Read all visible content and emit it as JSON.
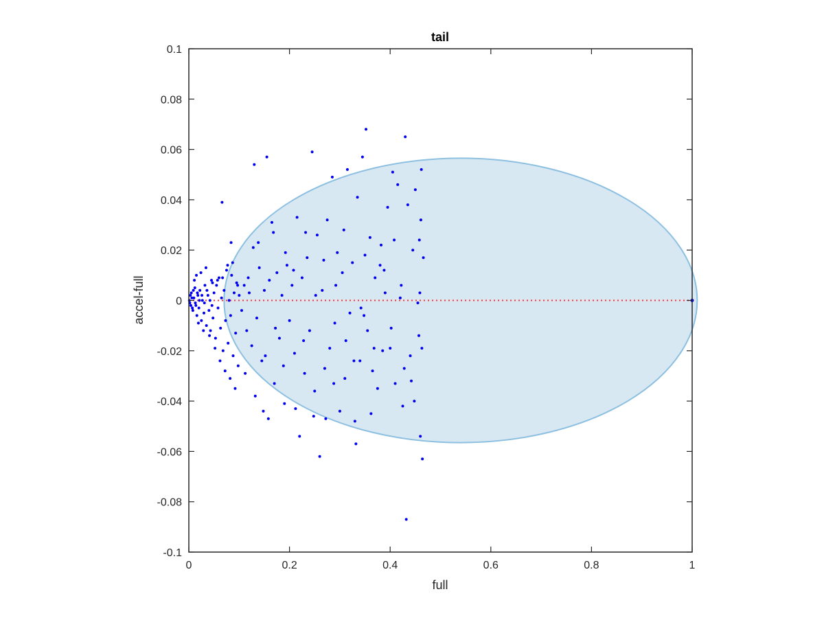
{
  "chart_data": {
    "type": "scatter",
    "title": "tail",
    "xlabel": "full",
    "ylabel": "accel-full",
    "xlim": [
      0,
      1
    ],
    "ylim": [
      -0.1,
      0.1
    ],
    "xticks": [
      0,
      0.2,
      0.4,
      0.6,
      0.8,
      1
    ],
    "xtick_labels": [
      "0",
      "0.2",
      "0.4",
      "0.6",
      "0.8",
      "1"
    ],
    "yticks": [
      -0.1,
      -0.08,
      -0.06,
      -0.04,
      -0.02,
      0,
      0.02,
      0.04,
      0.06,
      0.08,
      0.1
    ],
    "ytick_labels": [
      "-0.1",
      "-0.08",
      "-0.06",
      "-0.04",
      "-0.02",
      "0",
      "0.02",
      "0.04",
      "0.06",
      "0.08",
      "0.1"
    ],
    "grid": false,
    "box": true,
    "colors": {
      "points": "#0000ee",
      "reference_line": "#ff3333",
      "ellipse_fill": "#d8e8f3",
      "ellipse_edge": "#8cbfe0",
      "axes": "#262626"
    },
    "ellipse": {
      "cx": 0.54,
      "cy": 0.0,
      "rx": 0.47,
      "ry": 0.0565
    },
    "reference_line": {
      "y": 0,
      "x_start": 0,
      "x_end": 1,
      "style": "dotted"
    },
    "series": [
      {
        "values": [
          [
            0.005,
            0.003
          ],
          [
            0.008,
            -0.004
          ],
          [
            0.01,
            0.001
          ],
          [
            0.012,
            0.005
          ],
          [
            0.014,
            -0.002
          ],
          [
            0.016,
            -0.006
          ],
          [
            0.018,
            0.002
          ],
          [
            0.02,
            -0.003
          ],
          [
            0.022,
            0.004
          ],
          [
            0.025,
            -0.008
          ],
          [
            0.027,
            0.0
          ],
          [
            0.03,
            -0.005
          ],
          [
            0.032,
            0.006
          ],
          [
            0.035,
            -0.01
          ],
          [
            0.038,
            0.002
          ],
          [
            0.04,
            -0.004
          ],
          [
            0.043,
            -0.012
          ],
          [
            0.045,
            0.008
          ],
          [
            0.048,
            -0.007
          ],
          [
            0.05,
            0.003
          ],
          [
            0.053,
            -0.015
          ],
          [
            0.055,
            0.006
          ],
          [
            0.058,
            -0.003
          ],
          [
            0.06,
            0.009
          ],
          [
            0.063,
            -0.011
          ],
          [
            0.065,
            0.001
          ],
          [
            0.068,
            -0.02
          ],
          [
            0.07,
            0.004
          ],
          [
            0.073,
            -0.008
          ],
          [
            0.075,
            0.012
          ],
          [
            0.078,
            -0.017
          ],
          [
            0.08,
            0.0
          ],
          [
            0.083,
            -0.006
          ],
          [
            0.085,
            0.01
          ],
          [
            0.088,
            -0.022
          ],
          [
            0.09,
            0.003
          ],
          [
            0.093,
            -0.013
          ],
          [
            0.095,
            0.007
          ],
          [
            0.098,
            -0.026
          ],
          [
            0.1,
            0.002
          ],
          [
            0.011,
            0.008
          ],
          [
            0.015,
            0.01
          ],
          [
            0.019,
            -0.009
          ],
          [
            0.024,
            0.011
          ],
          [
            0.029,
            -0.012
          ],
          [
            0.034,
            0.013
          ],
          [
            0.041,
            -0.014
          ],
          [
            0.047,
            0.007
          ],
          [
            0.052,
            -0.019
          ],
          [
            0.057,
            0.008
          ],
          [
            0.062,
            -0.024
          ],
          [
            0.067,
            0.009
          ],
          [
            0.072,
            -0.028
          ],
          [
            0.077,
            0.014
          ],
          [
            0.082,
            -0.031
          ],
          [
            0.087,
            0.015
          ],
          [
            0.092,
            -0.035
          ],
          [
            0.097,
            0.006
          ],
          [
            0.084,
            0.023
          ],
          [
            0.066,
            0.039
          ],
          [
            0.105,
            -0.004
          ],
          [
            0.11,
            0.006
          ],
          [
            0.115,
            -0.012
          ],
          [
            0.12,
            0.003
          ],
          [
            0.125,
            -0.018
          ],
          [
            0.128,
            0.021
          ],
          [
            0.13,
            0.054
          ],
          [
            0.135,
            -0.007
          ],
          [
            0.14,
            0.013
          ],
          [
            0.145,
            -0.024
          ],
          [
            0.15,
            0.004
          ],
          [
            0.155,
            0.057
          ],
          [
            0.158,
            -0.047
          ],
          [
            0.16,
            0.008
          ],
          [
            0.165,
            0.031
          ],
          [
            0.17,
            -0.033
          ],
          [
            0.175,
            0.011
          ],
          [
            0.18,
            -0.015
          ],
          [
            0.185,
            0.002
          ],
          [
            0.19,
            -0.041
          ],
          [
            0.195,
            0.014
          ],
          [
            0.2,
            -0.008
          ],
          [
            0.205,
            0.006
          ],
          [
            0.21,
            -0.021
          ],
          [
            0.215,
            0.033
          ],
          [
            0.22,
            -0.054
          ],
          [
            0.225,
            0.009
          ],
          [
            0.23,
            -0.029
          ],
          [
            0.235,
            0.017
          ],
          [
            0.24,
            -0.012
          ],
          [
            0.245,
            0.059
          ],
          [
            0.25,
            -0.036
          ],
          [
            0.255,
            0.026
          ],
          [
            0.26,
            -0.062
          ],
          [
            0.265,
            0.004
          ],
          [
            0.27,
            -0.027
          ],
          [
            0.275,
            0.032
          ],
          [
            0.28,
            -0.019
          ],
          [
            0.285,
            0.049
          ],
          [
            0.29,
            -0.009
          ],
          [
            0.295,
            0.019
          ],
          [
            0.3,
            -0.044
          ],
          [
            0.305,
            0.011
          ],
          [
            0.31,
            -0.031
          ],
          [
            0.315,
            0.052
          ],
          [
            0.32,
            -0.005
          ],
          [
            0.325,
            0.015
          ],
          [
            0.33,
            -0.048
          ],
          [
            0.335,
            0.041
          ],
          [
            0.34,
            -0.024
          ],
          [
            0.345,
            0.057
          ],
          [
            0.35,
            0.018
          ],
          [
            0.352,
            0.068
          ],
          [
            0.355,
            -0.012
          ],
          [
            0.36,
            0.025
          ],
          [
            0.365,
            -0.028
          ],
          [
            0.37,
            0.009
          ],
          [
            0.375,
            -0.035
          ],
          [
            0.38,
            0.014
          ],
          [
            0.385,
            -0.02
          ],
          [
            0.39,
            0.003
          ],
          [
            0.395,
            0.037
          ],
          [
            0.4,
            -0.019
          ],
          [
            0.405,
            0.051
          ],
          [
            0.41,
            -0.033
          ],
          [
            0.415,
            0.046
          ],
          [
            0.42,
            0.001
          ],
          [
            0.425,
            -0.042
          ],
          [
            0.43,
            0.065
          ],
          [
            0.432,
            -0.087
          ],
          [
            0.435,
            0.038
          ],
          [
            0.44,
            -0.022
          ],
          [
            0.445,
            0.02
          ],
          [
            0.448,
            -0.04
          ],
          [
            0.45,
            0.044
          ],
          [
            0.455,
            -0.001
          ],
          [
            0.458,
            0.024
          ],
          [
            0.46,
            -0.054
          ],
          [
            0.462,
            0.052
          ],
          [
            0.464,
            -0.063
          ],
          [
            0.466,
            0.017
          ],
          [
            0.463,
            -0.019
          ],
          [
            0.461,
            0.032
          ],
          [
            0.459,
            0.003
          ],
          [
            0.457,
            -0.014
          ],
          [
            0.112,
            -0.029
          ],
          [
            0.132,
            -0.038
          ],
          [
            0.152,
            -0.022
          ],
          [
            0.172,
            -0.011
          ],
          [
            0.192,
            0.019
          ],
          [
            0.212,
            -0.043
          ],
          [
            0.232,
            0.027
          ],
          [
            0.252,
            0.002
          ],
          [
            0.272,
            -0.047
          ],
          [
            0.292,
            0.006
          ],
          [
            0.312,
            -0.016
          ],
          [
            0.332,
            -0.057
          ],
          [
            0.342,
            -0.003
          ],
          [
            0.362,
            -0.045
          ],
          [
            0.382,
            0.022
          ],
          [
            0.402,
            -0.011
          ],
          [
            0.422,
            0.006
          ],
          [
            0.442,
            -0.032
          ],
          [
            0.118,
            0.009
          ],
          [
            0.138,
            0.023
          ],
          [
            0.148,
            -0.044
          ],
          [
            0.168,
            0.027
          ],
          [
            0.188,
            -0.026
          ],
          [
            0.208,
            0.012
          ],
          [
            0.228,
            -0.016
          ],
          [
            0.248,
            -0.046
          ],
          [
            0.268,
            0.016
          ],
          [
            0.288,
            -0.033
          ],
          [
            0.308,
            0.028
          ],
          [
            0.328,
            -0.024
          ],
          [
            0.348,
            -0.006
          ],
          [
            0.368,
            -0.019
          ],
          [
            0.388,
            0.012
          ],
          [
            0.408,
            0.024
          ],
          [
            0.428,
            -0.027
          ],
          [
            0.001,
            0.0
          ],
          [
            0.002,
            -0.001
          ],
          [
            0.003,
            0.002
          ],
          [
            0.004,
            -0.002
          ],
          [
            0.006,
            0.001
          ],
          [
            0.007,
            -0.003
          ],
          [
            0.009,
            0.004
          ],
          [
            0.013,
            -0.001
          ],
          [
            0.017,
            0.003
          ],
          [
            0.021,
            0.0
          ],
          [
            0.026,
            0.002
          ],
          [
            0.031,
            -0.001
          ],
          [
            0.036,
            0.004
          ],
          [
            0.042,
            0.0
          ],
          [
            0.046,
            -0.002
          ]
        ]
      }
    ]
  }
}
